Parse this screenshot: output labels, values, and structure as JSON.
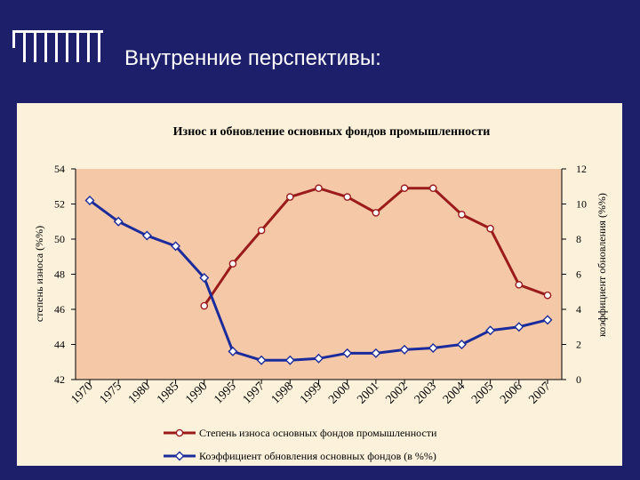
{
  "slide": {
    "title": "Внутренние перспективы:"
  },
  "chart_data": {
    "type": "line",
    "title": "Износ и обновление основных фондов промышленности",
    "categories": [
      "1970",
      "1975",
      "1980",
      "1985",
      "1990",
      "1995",
      "1997",
      "1998",
      "1999",
      "2000",
      "2001",
      "2002",
      "2003",
      "2004",
      "2005",
      "2006",
      "2007"
    ],
    "y_left": {
      "label": "степень износа (%%)",
      "range": [
        42,
        54
      ],
      "ticks": [
        42,
        44,
        46,
        48,
        50,
        52,
        54
      ]
    },
    "y_right": {
      "label": "коэффициент обновления (%%)",
      "range": [
        0,
        12
      ],
      "ticks": [
        0,
        2,
        4,
        6,
        8,
        10,
        12
      ]
    },
    "grid": false,
    "legend_position": "bottom",
    "series": [
      {
        "name": "Степень износа основных фондов промышленности",
        "axis": "left",
        "color": "#9b1b1b",
        "values": [
          null,
          null,
          null,
          null,
          46.2,
          48.6,
          50.5,
          52.4,
          52.9,
          52.4,
          51.5,
          52.9,
          52.9,
          51.4,
          50.6,
          47.4,
          46.8
        ]
      },
      {
        "name": "Коэффициент обновления основных фондов (в %%)",
        "axis": "right",
        "color": "#1b2b9b",
        "values": [
          10.2,
          9.0,
          8.2,
          7.6,
          5.8,
          1.6,
          1.1,
          1.1,
          1.2,
          1.5,
          1.5,
          1.7,
          1.8,
          2.0,
          2.8,
          3.0,
          3.4
        ]
      }
    ]
  }
}
